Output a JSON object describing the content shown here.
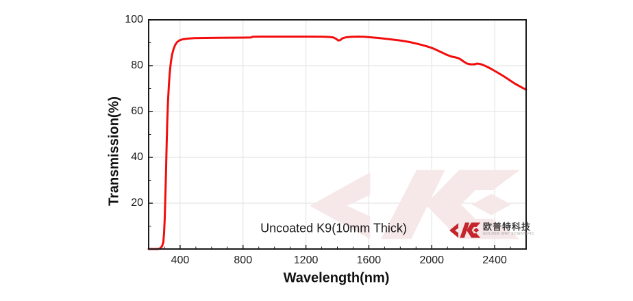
{
  "chart_data": {
    "type": "line",
    "title": "",
    "xlabel": "Wavelength(nm)",
    "ylabel": "Transmission(%)",
    "xlim": [
      200,
      2600
    ],
    "ylim": [
      0,
      100
    ],
    "x_major_ticks": [
      400,
      800,
      1200,
      1600,
      2000,
      2400
    ],
    "x_tick_labels": [
      "400",
      "800",
      "1200",
      "1600",
      "2000",
      "2400"
    ],
    "x_minor_ticks": [
      300,
      500,
      600,
      700,
      900,
      1000,
      1100,
      1300,
      1400,
      1500,
      1700,
      1800,
      1900,
      2100,
      2200,
      2300,
      2500
    ],
    "y_major_ticks": [
      20,
      40,
      60,
      80,
      100
    ],
    "y_tick_labels": [
      "20",
      "40",
      "60",
      "80",
      "100"
    ],
    "y_minor_ticks": [
      10,
      30,
      50,
      70,
      90
    ],
    "grid": true,
    "legend": "none",
    "annotation": "Uncoated K9(10mm Thick)",
    "series": [
      {
        "name": "Uncoated K9 (10mm thick) transmission",
        "color": "#f20c0c",
        "points": [
          [
            200,
            0
          ],
          [
            262,
            0
          ],
          [
            275,
            0.4
          ],
          [
            285,
            1.2
          ],
          [
            293,
            3
          ],
          [
            298,
            7
          ],
          [
            302,
            13
          ],
          [
            306,
            22
          ],
          [
            310,
            33
          ],
          [
            314,
            45
          ],
          [
            318,
            55
          ],
          [
            323,
            64
          ],
          [
            328,
            71
          ],
          [
            334,
            77
          ],
          [
            341,
            81.5
          ],
          [
            349,
            84.8
          ],
          [
            358,
            87.2
          ],
          [
            368,
            89.0
          ],
          [
            380,
            90.2
          ],
          [
            395,
            91.0
          ],
          [
            415,
            91.5
          ],
          [
            445,
            91.8
          ],
          [
            490,
            92.0
          ],
          [
            560,
            92.1
          ],
          [
            640,
            92.15
          ],
          [
            720,
            92.2
          ],
          [
            800,
            92.25
          ],
          [
            852,
            92.3
          ],
          [
            862,
            92.65
          ],
          [
            920,
            92.7
          ],
          [
            1020,
            92.7
          ],
          [
            1120,
            92.7
          ],
          [
            1220,
            92.7
          ],
          [
            1300,
            92.65
          ],
          [
            1345,
            92.55
          ],
          [
            1375,
            92.3
          ],
          [
            1392,
            91.7
          ],
          [
            1405,
            91.0
          ],
          [
            1417,
            91.1
          ],
          [
            1432,
            91.9
          ],
          [
            1455,
            92.4
          ],
          [
            1490,
            92.6
          ],
          [
            1530,
            92.7
          ],
          [
            1570,
            92.6
          ],
          [
            1610,
            92.4
          ],
          [
            1660,
            92.1
          ],
          [
            1710,
            91.7
          ],
          [
            1760,
            91.3
          ],
          [
            1810,
            90.9
          ],
          [
            1860,
            90.3
          ],
          [
            1905,
            89.6
          ],
          [
            1945,
            88.9
          ],
          [
            1980,
            88.2
          ],
          [
            2010,
            87.5
          ],
          [
            2045,
            86.4
          ],
          [
            2075,
            85.4
          ],
          [
            2100,
            84.6
          ],
          [
            2125,
            84.0
          ],
          [
            2150,
            83.6
          ],
          [
            2168,
            83.3
          ],
          [
            2185,
            82.7
          ],
          [
            2205,
            81.7
          ],
          [
            2225,
            80.9
          ],
          [
            2245,
            80.6
          ],
          [
            2270,
            80.6
          ],
          [
            2290,
            80.9
          ],
          [
            2310,
            80.7
          ],
          [
            2330,
            80.2
          ],
          [
            2355,
            79.4
          ],
          [
            2380,
            78.5
          ],
          [
            2410,
            77.3
          ],
          [
            2450,
            75.7
          ],
          [
            2490,
            73.9
          ],
          [
            2530,
            72.1
          ],
          [
            2570,
            70.6
          ],
          [
            2600,
            69.5
          ]
        ]
      }
    ]
  },
  "branding": {
    "logo_cn": "欧普特科技",
    "logo_en": "GOLDEN WAY SCIENTIFIC",
    "logo_color": "#c4242b"
  },
  "colors": {
    "curve": "#f20c0c",
    "grid": "#e5e5e5",
    "plot_border": "#1a1a1a",
    "watermark": "#f6e8e8",
    "background": "#ffffff"
  }
}
